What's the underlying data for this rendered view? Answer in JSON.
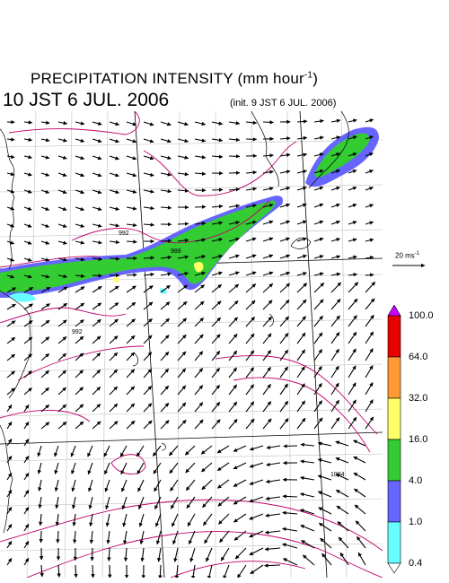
{
  "header": {
    "title": "PRECIPITATION INTENSITY (mm hour",
    "title_exp": "-1",
    "title_close": ")",
    "valid_time": "10 JST 6 JUL. 2006",
    "init_time": "(init. 9 JST 6 JUL. 2006)"
  },
  "vector_scale": {
    "label": "20 ms",
    "label_exp": "-1"
  },
  "pressure_labels": [
    {
      "text": "992"
    },
    {
      "text": "988"
    },
    {
      "text": "992"
    },
    {
      "text": "1004"
    }
  ],
  "colorbar": {
    "ticks": [
      "100.0",
      "64.0",
      "32.0",
      "16.0",
      "4.0",
      "1.0",
      "0.4"
    ],
    "colors": [
      "#cc00ff",
      "#e60000",
      "#ff9933",
      "#ffff66",
      "#33cc33",
      "#6666ff",
      "#66ffff"
    ]
  },
  "map_colors": {
    "contour": "#c0006c",
    "coast": "#000000",
    "grid": "#bfbfbf",
    "rain_light": "#66ffff",
    "rain_moderate": "#6666ff",
    "rain_heavy": "#33cc33",
    "rain_intense": "#ffff66"
  }
}
